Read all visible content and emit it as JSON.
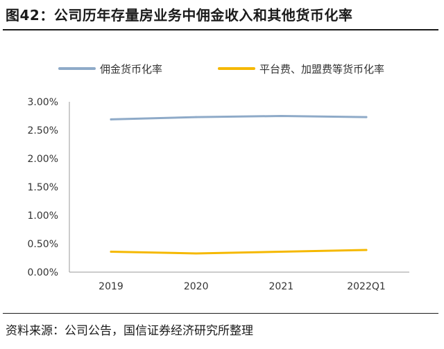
{
  "figure": {
    "title": "图42：公司历年存量房业务中佣金收入和其他货币化率",
    "source": "资料来源：公司公告，国信证券经济研究所整理"
  },
  "chart_data": {
    "type": "line",
    "categories": [
      "2019",
      "2020",
      "2021",
      "2022Q1"
    ],
    "series": [
      {
        "name": "佣金货币化率",
        "color": "#8eaac8",
        "values": [
          2.69,
          2.73,
          2.75,
          2.73
        ]
      },
      {
        "name": "平台费、加盟费等货币化率",
        "color": "#f5b800",
        "values": [
          0.36,
          0.33,
          0.36,
          0.39
        ]
      }
    ],
    "yticks": [
      "0.00%",
      "0.50%",
      "1.00%",
      "1.50%",
      "2.00%",
      "2.50%",
      "3.00%"
    ],
    "ylim": [
      0,
      3
    ],
    "grid": false,
    "legend_position": "top"
  }
}
